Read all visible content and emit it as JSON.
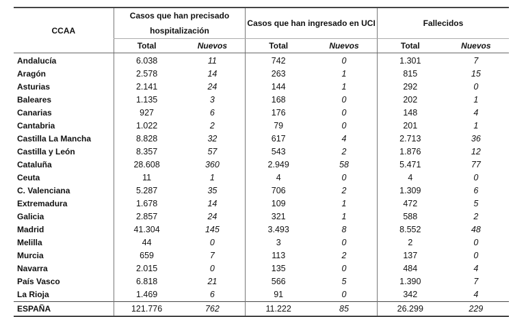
{
  "table": {
    "ccaa_header": "CCAA",
    "groups": [
      "Casos que han precisado hospitalización",
      "Casos que han ingresado en UCI",
      "Fallecidos"
    ],
    "sub_total": "Total",
    "sub_nuevos": "Nuevos",
    "rows": [
      [
        "Andalucía",
        "6.038",
        "11",
        "742",
        "0",
        "1.301",
        "7"
      ],
      [
        "Aragón",
        "2.578",
        "14",
        "263",
        "1",
        "815",
        "15"
      ],
      [
        "Asturias",
        "2.141",
        "24",
        "144",
        "1",
        "292",
        "0"
      ],
      [
        "Baleares",
        "1.135",
        "3",
        "168",
        "0",
        "202",
        "1"
      ],
      [
        "Canarias",
        "927",
        "6",
        "176",
        "0",
        "148",
        "4"
      ],
      [
        "Cantabria",
        "1.022",
        "2",
        "79",
        "0",
        "201",
        "1"
      ],
      [
        "Castilla La Mancha",
        "8.828",
        "32",
        "617",
        "4",
        "2.713",
        "36"
      ],
      [
        "Castilla y León",
        "8.357",
        "57",
        "543",
        "2",
        "1.876",
        "12"
      ],
      [
        "Cataluña",
        "28.608",
        "360",
        "2.949",
        "58",
        "5.471",
        "77"
      ],
      [
        "Ceuta",
        "11",
        "1",
        "4",
        "0",
        "4",
        "0"
      ],
      [
        "C. Valenciana",
        "5.287",
        "35",
        "706",
        "2",
        "1.309",
        "6"
      ],
      [
        "Extremadura",
        "1.678",
        "14",
        "109",
        "1",
        "472",
        "5"
      ],
      [
        "Galicia",
        "2.857",
        "24",
        "321",
        "1",
        "588",
        "2"
      ],
      [
        "Madrid",
        "41.304",
        "145",
        "3.493",
        "8",
        "8.552",
        "48"
      ],
      [
        "Melilla",
        "44",
        "0",
        "3",
        "0",
        "2",
        "0"
      ],
      [
        "Murcia",
        "659",
        "7",
        "113",
        "2",
        "137",
        "0"
      ],
      [
        "Navarra",
        "2.015",
        "0",
        "135",
        "0",
        "484",
        "4"
      ],
      [
        "País Vasco",
        "6.818",
        "21",
        "566",
        "5",
        "1.390",
        "7"
      ],
      [
        "La Rioja",
        "1.469",
        "6",
        "91",
        "0",
        "342",
        "4"
      ]
    ],
    "total": [
      "ESPAÑA",
      "121.776",
      "762",
      "11.222",
      "85",
      "26.299",
      "229"
    ]
  }
}
